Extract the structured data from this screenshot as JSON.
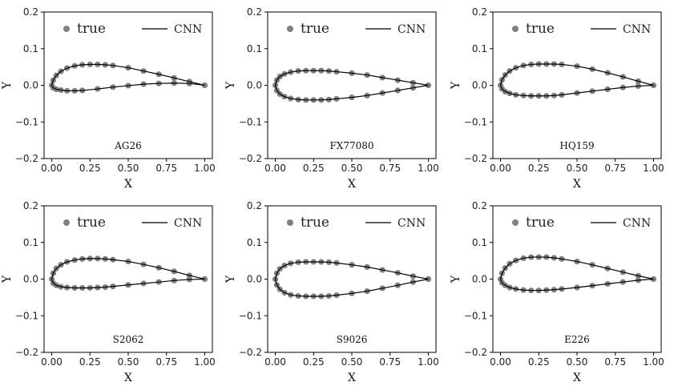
{
  "legend": {
    "true_label": "true",
    "cnn_label": "CNN"
  },
  "colors": {
    "true_marker": "#808080",
    "cnn_line": "#000000"
  },
  "chart_data": [
    {
      "type": "line",
      "name": "AG26",
      "xlabel": "X",
      "ylabel": "Y",
      "xlim": [
        -0.05,
        1.05
      ],
      "ylim": [
        -0.2,
        0.2
      ],
      "xticks": [
        "0.00",
        "0.25",
        "0.50",
        "0.75",
        "1.00"
      ],
      "yticks": [
        "0.2",
        "0.1",
        "0.0",
        "−0.1",
        "−0.2"
      ],
      "grid": false,
      "legend_position": "top",
      "upper": {
        "x": [
          0,
          0.01,
          0.03,
          0.06,
          0.1,
          0.15,
          0.2,
          0.25,
          0.3,
          0.35,
          0.4,
          0.5,
          0.6,
          0.7,
          0.8,
          0.9,
          1.0
        ],
        "y": [
          0,
          0.014,
          0.027,
          0.038,
          0.047,
          0.053,
          0.056,
          0.057,
          0.057,
          0.056,
          0.054,
          0.048,
          0.039,
          0.03,
          0.02,
          0.01,
          0
        ]
      },
      "lower": {
        "x": [
          0,
          0.01,
          0.03,
          0.06,
          0.1,
          0.15,
          0.2,
          0.3,
          0.4,
          0.5,
          0.6,
          0.7,
          0.8,
          0.9,
          1.0
        ],
        "y": [
          0,
          -0.007,
          -0.011,
          -0.013,
          -0.015,
          -0.015,
          -0.014,
          -0.01,
          -0.005,
          -0.001,
          0.003,
          0.005,
          0.006,
          0.005,
          0
        ]
      }
    },
    {
      "type": "line",
      "name": "FX77080",
      "xlabel": "X",
      "ylabel": "Y",
      "xlim": [
        -0.05,
        1.05
      ],
      "ylim": [
        -0.2,
        0.2
      ],
      "xticks": [
        "0.00",
        "0.25",
        "0.50",
        "0.75",
        "1.00"
      ],
      "yticks": [
        "0.2",
        "0.1",
        "0.0",
        "−0.1",
        "−0.2"
      ],
      "grid": false,
      "legend_position": "top",
      "upper": {
        "x": [
          0,
          0.01,
          0.03,
          0.06,
          0.1,
          0.15,
          0.2,
          0.25,
          0.3,
          0.35,
          0.4,
          0.5,
          0.6,
          0.7,
          0.8,
          0.9,
          1.0
        ],
        "y": [
          0,
          0.014,
          0.024,
          0.031,
          0.036,
          0.039,
          0.04,
          0.04,
          0.04,
          0.039,
          0.037,
          0.033,
          0.028,
          0.021,
          0.014,
          0.007,
          0
        ]
      },
      "lower": {
        "x": [
          0,
          0.01,
          0.03,
          0.06,
          0.1,
          0.15,
          0.2,
          0.25,
          0.3,
          0.35,
          0.4,
          0.5,
          0.6,
          0.7,
          0.8,
          0.9,
          1.0
        ],
        "y": [
          0,
          -0.014,
          -0.024,
          -0.031,
          -0.036,
          -0.039,
          -0.04,
          -0.04,
          -0.04,
          -0.039,
          -0.037,
          -0.033,
          -0.028,
          -0.021,
          -0.014,
          -0.007,
          0
        ]
      }
    },
    {
      "type": "line",
      "name": "HQ159",
      "xlabel": "X",
      "ylabel": "Y",
      "xlim": [
        -0.05,
        1.05
      ],
      "ylim": [
        -0.2,
        0.2
      ],
      "xticks": [
        "0.00",
        "0.25",
        "0.50",
        "0.75",
        "1.00"
      ],
      "yticks": [
        "0.2",
        "0.1",
        "0.0",
        "−0.1",
        "−0.2"
      ],
      "grid": false,
      "legend_position": "top",
      "upper": {
        "x": [
          0,
          0.01,
          0.03,
          0.06,
          0.1,
          0.15,
          0.2,
          0.25,
          0.3,
          0.35,
          0.4,
          0.5,
          0.6,
          0.7,
          0.8,
          0.9,
          1.0
        ],
        "y": [
          0,
          0.015,
          0.028,
          0.039,
          0.048,
          0.054,
          0.057,
          0.058,
          0.058,
          0.058,
          0.057,
          0.052,
          0.044,
          0.034,
          0.023,
          0.011,
          0
        ]
      },
      "lower": {
        "x": [
          0,
          0.01,
          0.03,
          0.06,
          0.1,
          0.15,
          0.2,
          0.25,
          0.3,
          0.35,
          0.4,
          0.5,
          0.6,
          0.7,
          0.8,
          0.9,
          1.0
        ],
        "y": [
          0,
          -0.01,
          -0.017,
          -0.022,
          -0.026,
          -0.028,
          -0.029,
          -0.029,
          -0.029,
          -0.028,
          -0.026,
          -0.021,
          -0.016,
          -0.011,
          -0.006,
          -0.002,
          0
        ]
      }
    },
    {
      "type": "line",
      "name": "S2062",
      "xlabel": "X",
      "ylabel": "Y",
      "xlim": [
        -0.05,
        1.05
      ],
      "ylim": [
        -0.2,
        0.2
      ],
      "xticks": [
        "0.00",
        "0.25",
        "0.50",
        "0.75",
        "1.00"
      ],
      "yticks": [
        "0.2",
        "0.1",
        "0.0",
        "−0.1",
        "−0.2"
      ],
      "grid": false,
      "legend_position": "top",
      "upper": {
        "x": [
          0,
          0.01,
          0.03,
          0.06,
          0.1,
          0.15,
          0.2,
          0.25,
          0.3,
          0.35,
          0.4,
          0.5,
          0.6,
          0.7,
          0.8,
          0.9,
          1.0
        ],
        "y": [
          0,
          0.016,
          0.029,
          0.039,
          0.047,
          0.052,
          0.055,
          0.056,
          0.056,
          0.055,
          0.053,
          0.048,
          0.04,
          0.031,
          0.021,
          0.01,
          0
        ]
      },
      "lower": {
        "x": [
          0,
          0.01,
          0.03,
          0.06,
          0.1,
          0.15,
          0.2,
          0.25,
          0.3,
          0.35,
          0.4,
          0.5,
          0.6,
          0.7,
          0.8,
          0.9,
          1.0
        ],
        "y": [
          0,
          -0.011,
          -0.017,
          -0.021,
          -0.023,
          -0.024,
          -0.024,
          -0.024,
          -0.023,
          -0.022,
          -0.02,
          -0.016,
          -0.012,
          -0.008,
          -0.004,
          -0.001,
          0
        ]
      }
    },
    {
      "type": "line",
      "name": "S9026",
      "xlabel": "X",
      "ylabel": "Y",
      "xlim": [
        -0.05,
        1.05
      ],
      "ylim": [
        -0.2,
        0.2
      ],
      "xticks": [
        "0.00",
        "0.25",
        "0.50",
        "0.75",
        "1.00"
      ],
      "yticks": [
        "0.2",
        "0.1",
        "0.0",
        "−0.1",
        "−0.2"
      ],
      "grid": false,
      "legend_position": "top",
      "upper": {
        "x": [
          0,
          0.01,
          0.03,
          0.06,
          0.1,
          0.15,
          0.2,
          0.25,
          0.3,
          0.35,
          0.4,
          0.5,
          0.6,
          0.7,
          0.8,
          0.9,
          1.0
        ],
        "y": [
          0,
          0.016,
          0.028,
          0.037,
          0.043,
          0.046,
          0.047,
          0.047,
          0.047,
          0.046,
          0.044,
          0.039,
          0.033,
          0.025,
          0.017,
          0.008,
          0
        ]
      },
      "lower": {
        "x": [
          0,
          0.01,
          0.03,
          0.06,
          0.1,
          0.15,
          0.2,
          0.25,
          0.3,
          0.35,
          0.4,
          0.5,
          0.6,
          0.7,
          0.8,
          0.9,
          1.0
        ],
        "y": [
          0,
          -0.016,
          -0.028,
          -0.037,
          -0.043,
          -0.046,
          -0.047,
          -0.047,
          -0.047,
          -0.046,
          -0.044,
          -0.039,
          -0.033,
          -0.025,
          -0.017,
          -0.008,
          0
        ]
      }
    },
    {
      "type": "line",
      "name": "E226",
      "xlabel": "X",
      "ylabel": "Y",
      "xlim": [
        -0.05,
        1.05
      ],
      "ylim": [
        -0.2,
        0.2
      ],
      "xticks": [
        "0.00",
        "0.25",
        "0.50",
        "0.75",
        "1.00"
      ],
      "yticks": [
        "0.2",
        "0.1",
        "0.0",
        "−0.1",
        "−0.2"
      ],
      "grid": false,
      "legend_position": "top",
      "upper": {
        "x": [
          0,
          0.01,
          0.03,
          0.06,
          0.1,
          0.15,
          0.2,
          0.25,
          0.3,
          0.35,
          0.4,
          0.5,
          0.6,
          0.7,
          0.8,
          0.9,
          1.0
        ],
        "y": [
          0,
          0.016,
          0.03,
          0.042,
          0.051,
          0.057,
          0.06,
          0.06,
          0.06,
          0.058,
          0.055,
          0.048,
          0.039,
          0.029,
          0.019,
          0.009,
          0
        ]
      },
      "lower": {
        "x": [
          0,
          0.01,
          0.03,
          0.06,
          0.1,
          0.15,
          0.2,
          0.25,
          0.3,
          0.35,
          0.4,
          0.5,
          0.6,
          0.7,
          0.8,
          0.9,
          1.0
        ],
        "y": [
          0,
          -0.01,
          -0.017,
          -0.023,
          -0.027,
          -0.03,
          -0.031,
          -0.031,
          -0.03,
          -0.029,
          -0.027,
          -0.023,
          -0.018,
          -0.013,
          -0.008,
          -0.003,
          0
        ]
      }
    }
  ]
}
